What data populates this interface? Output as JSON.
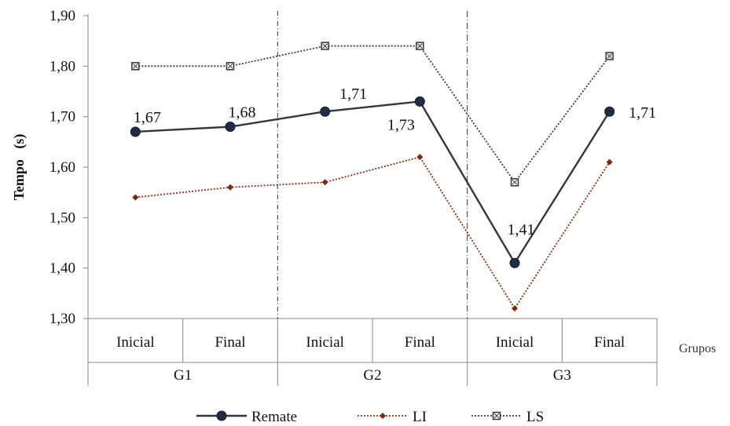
{
  "chart_data": {
    "type": "line",
    "ylabel": "Tempo   (s)",
    "xlabel": "Grupos",
    "ylim": [
      1.3,
      1.9
    ],
    "ytick_labels": [
      "1,30",
      "1,40",
      "1,50",
      "1,60",
      "1,70",
      "1,80",
      "1,90"
    ],
    "categories": [
      "Inicial",
      "Final",
      "Inicial",
      "Final",
      "Inicial",
      "Final"
    ],
    "groups": [
      {
        "label": "G1",
        "span": 2
      },
      {
        "label": "G2",
        "span": 2
      },
      {
        "label": "G3",
        "span": 2
      }
    ],
    "series": [
      {
        "name": "Remate",
        "values": [
          1.67,
          1.68,
          1.71,
          1.73,
          1.41,
          1.71
        ],
        "color": "#34353f",
        "style": "solid",
        "marker": "circle"
      },
      {
        "name": "LI",
        "values": [
          1.54,
          1.56,
          1.57,
          1.62,
          1.32,
          1.61
        ],
        "color": "#8a2e0e",
        "style": "dotted",
        "marker": "diamond"
      },
      {
        "name": "LS",
        "values": [
          1.8,
          1.8,
          1.84,
          1.84,
          1.57,
          1.82
        ],
        "color": "#3a3a3a",
        "style": "dotted",
        "marker": "square"
      }
    ],
    "data_labels": [
      "1,67",
      "1,68",
      "1,71",
      "1,73",
      "1,41",
      "1,71"
    ],
    "legend_position": "bottom",
    "grid": false
  }
}
